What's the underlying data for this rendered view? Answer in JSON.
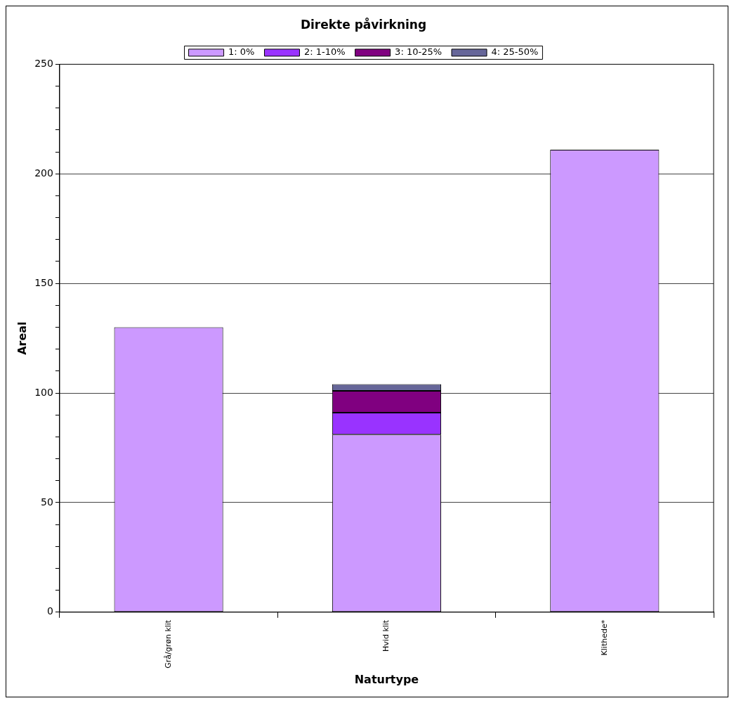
{
  "chart_data": {
    "type": "bar",
    "title": "Direkte påvirkning",
    "xlabel": "Naturtype",
    "ylabel": "Areal",
    "categories": [
      "Grå/grøn klit",
      "Hvid klit",
      "Klithede*"
    ],
    "stacked": true,
    "series": [
      {
        "name": "1: 0%",
        "color": "#cc99ff",
        "values": [
          130,
          81,
          211
        ]
      },
      {
        "name": "2: 1-10%",
        "color": "#9933ff",
        "values": [
          null,
          10,
          null
        ]
      },
      {
        "name": "3: 10-25%",
        "color": "#800080",
        "values": [
          null,
          10,
          null
        ]
      },
      {
        "name": "4: 25-50%",
        "color": "#666699",
        "values": [
          null,
          3,
          null
        ]
      }
    ],
    "ylim": [
      0,
      250
    ],
    "yticks": [
      0,
      {
        "value": 10,
        "label": null
      },
      {
        "value": 20,
        "label": null
      },
      {
        "value": 30,
        "label": null
      },
      {
        "value": 40,
        "label": null
      },
      50,
      {
        "value": 60,
        "label": null
      },
      {
        "value": 70,
        "label": null
      },
      {
        "value": 80,
        "label": null
      },
      {
        "value": 90,
        "label": null
      },
      100,
      {
        "value": 110,
        "label": null
      },
      {
        "value": 120,
        "label": null
      },
      {
        "value": 130,
        "label": null
      },
      {
        "value": 140,
        "label": null
      },
      150,
      {
        "value": 160,
        "label": null
      },
      {
        "value": 170,
        "label": null
      },
      {
        "value": 180,
        "label": null
      },
      {
        "value": 190,
        "label": null
      },
      200,
      {
        "value": 210,
        "label": null
      },
      {
        "value": 220,
        "label": null
      },
      {
        "value": 230,
        "label": null
      },
      {
        "value": 240,
        "label": null
      },
      250
    ],
    "grid": "y",
    "legend": "top"
  }
}
